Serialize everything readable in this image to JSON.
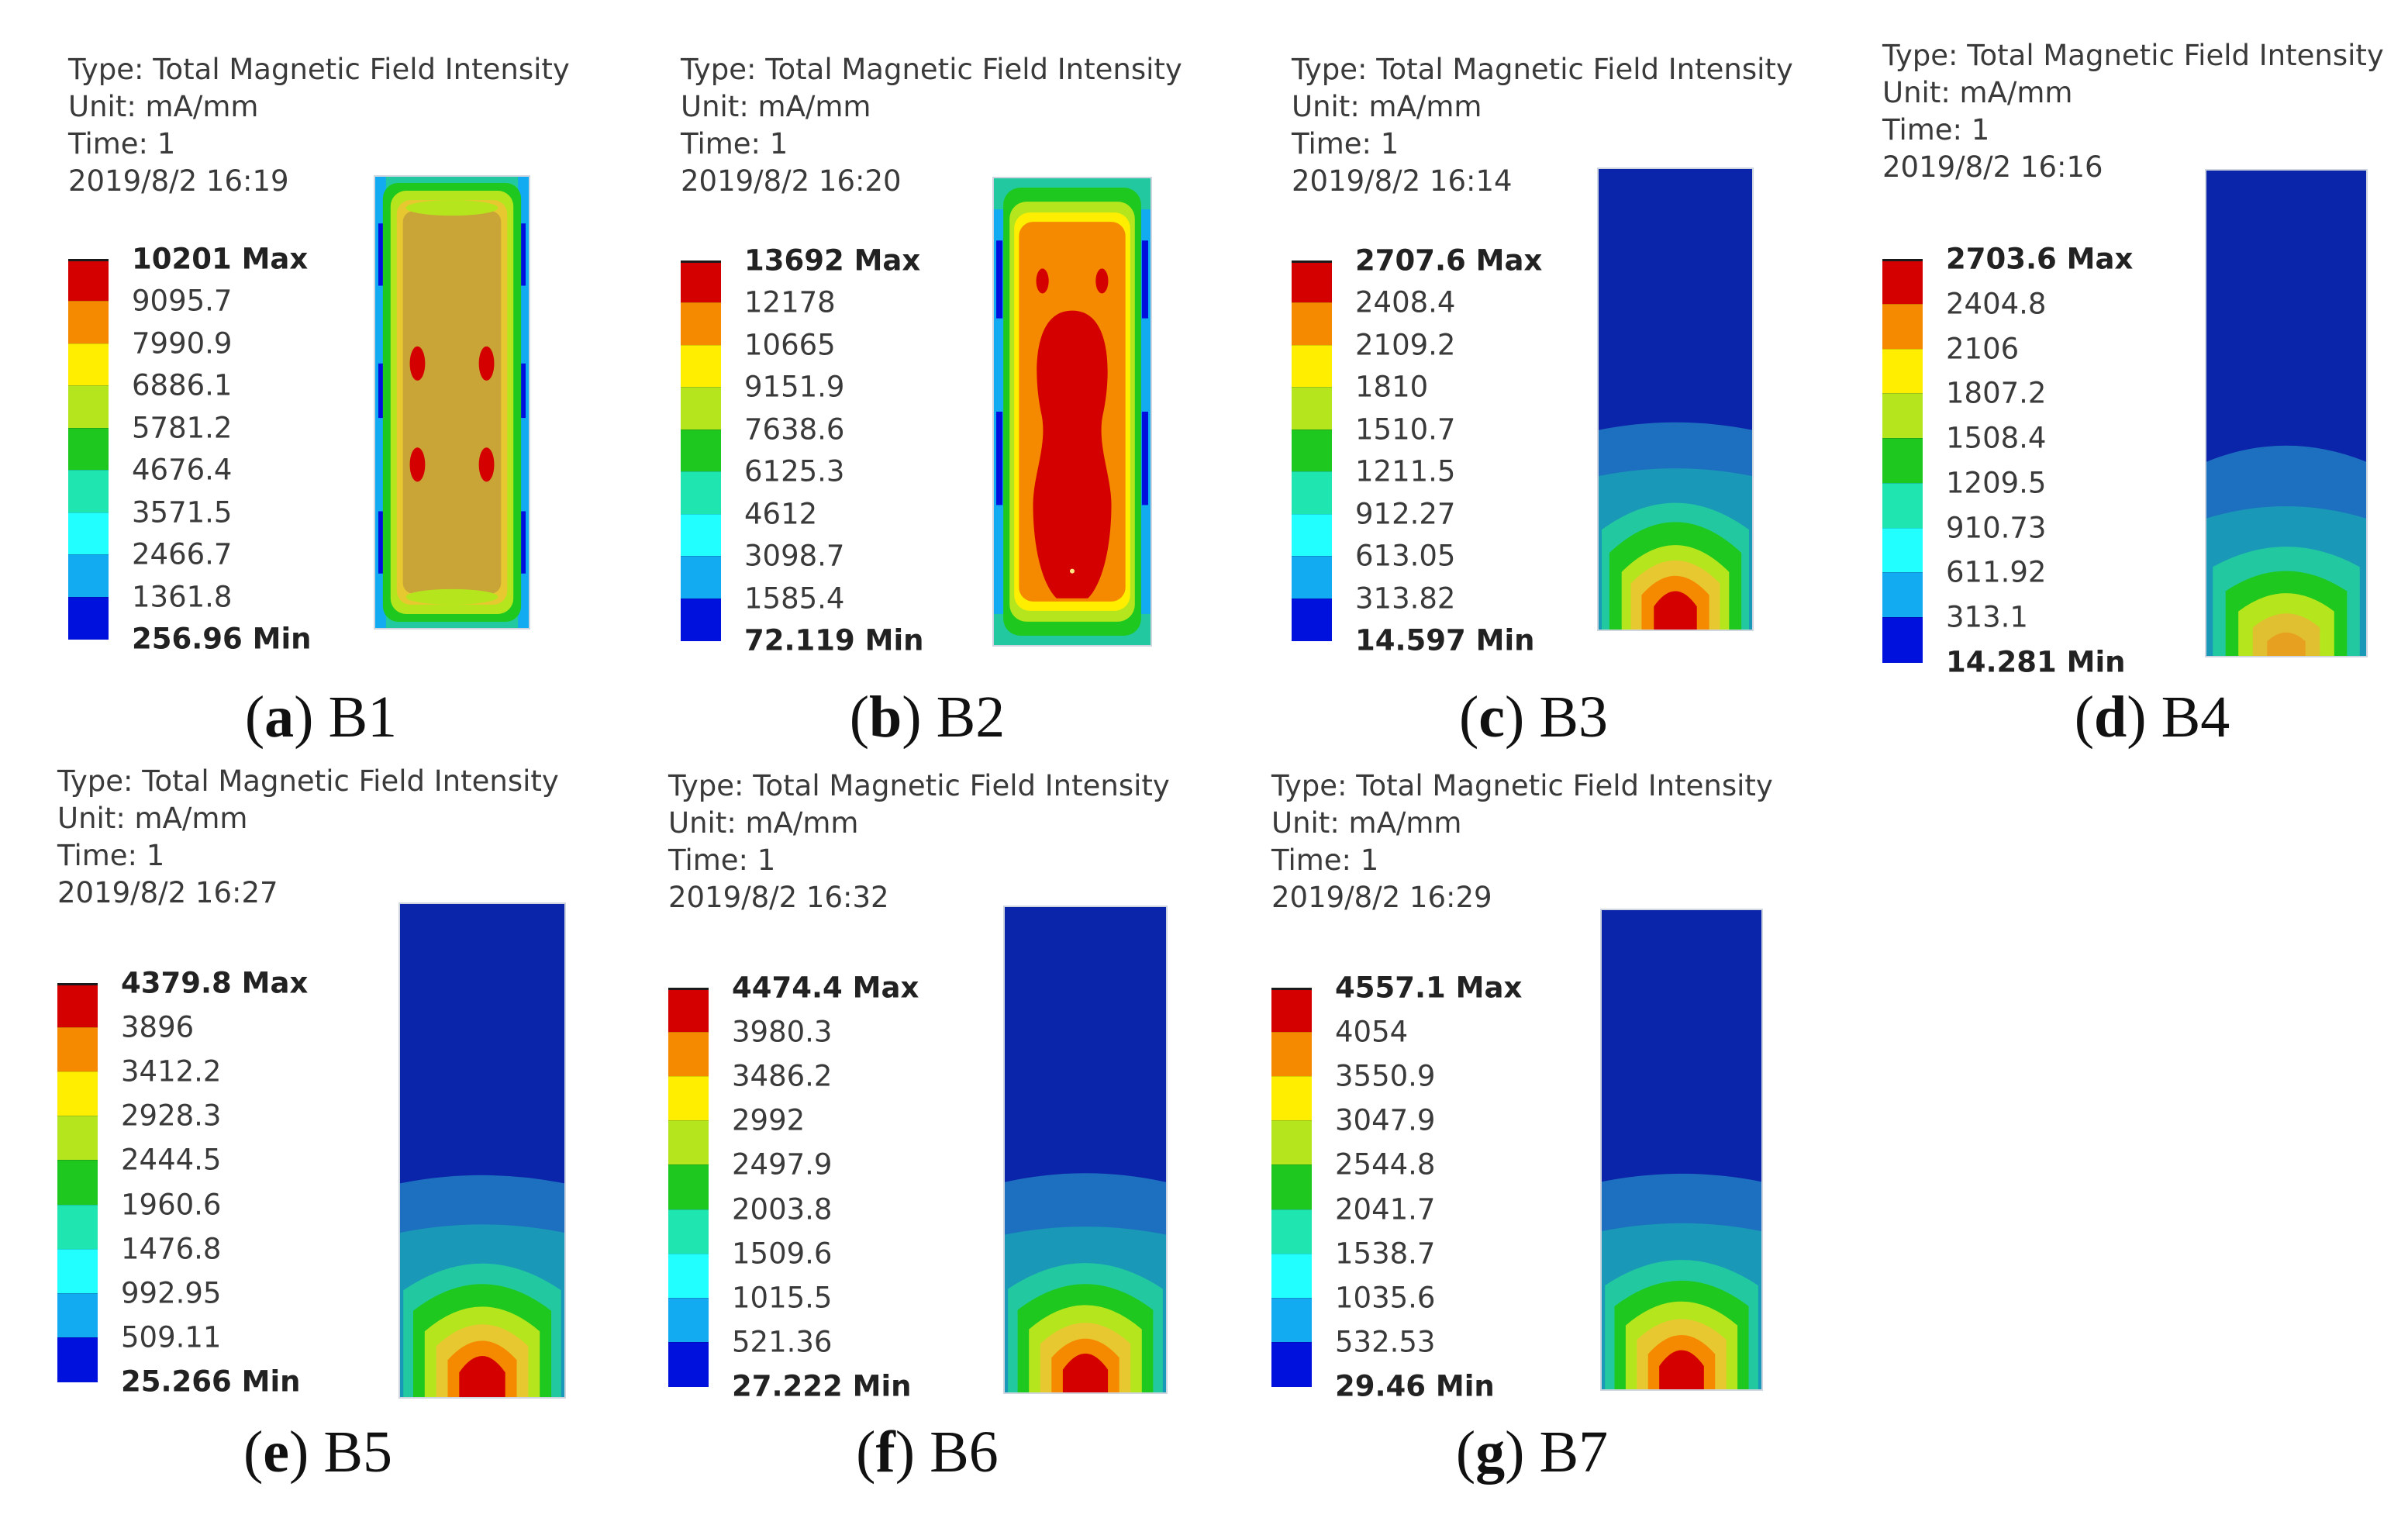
{
  "header": {
    "type": "Type: Total Magnetic Field Intensity",
    "unit": "Unit: mA/mm",
    "time": "Time: 1"
  },
  "legend_colors": [
    "#d40000",
    "#f58a00",
    "#ffee00",
    "#b5e61d",
    "#1fc81f",
    "#1fe6b0",
    "#22ffff",
    "#12aaf0",
    "#0011dd"
  ],
  "panels": [
    {
      "id": "b1",
      "date": "2019/8/2 16:19",
      "legend": [
        "10201 Max",
        "9095.7",
        "7990.9",
        "6886.1",
        "5781.2",
        "4676.4",
        "3571.5",
        "2466.7",
        "1361.8",
        "256.96 Min"
      ],
      "caption": {
        "letter": "a",
        "name": "B1"
      }
    },
    {
      "id": "b2",
      "date": "2019/8/2 16:20",
      "legend": [
        "13692 Max",
        "12178",
        "10665",
        "9151.9",
        "7638.6",
        "6125.3",
        "4612",
        "3098.7",
        "1585.4",
        "72.119 Min"
      ],
      "caption": {
        "letter": "b",
        "name": "B2"
      }
    },
    {
      "id": "b3",
      "date": "2019/8/2 16:14",
      "legend": [
        "2707.6 Max",
        "2408.4",
        "2109.2",
        "1810",
        "1510.7",
        "1211.5",
        "912.27",
        "613.05",
        "313.82",
        "14.597 Min"
      ],
      "caption": {
        "letter": "c",
        "name": "B3"
      }
    },
    {
      "id": "b4",
      "date": "2019/8/2 16:16",
      "legend": [
        "2703.6 Max",
        "2404.8",
        "2106",
        "1807.2",
        "1508.4",
        "1209.5",
        "910.73",
        "611.92",
        "313.1",
        "14.281 Min"
      ],
      "caption": {
        "letter": "d",
        "name": "B4"
      }
    },
    {
      "id": "b5",
      "date": "2019/8/2 16:27",
      "legend": [
        "4379.8 Max",
        "3896",
        "3412.2",
        "2928.3",
        "2444.5",
        "1960.6",
        "1476.8",
        "992.95",
        "509.11",
        "25.266 Min"
      ],
      "caption": {
        "letter": "e",
        "name": "B5"
      }
    },
    {
      "id": "b6",
      "date": "2019/8/2 16:32",
      "legend": [
        "4474.4 Max",
        "3980.3",
        "3486.2",
        "2992",
        "2497.9",
        "2003.8",
        "1509.6",
        "1015.5",
        "521.36",
        "27.222 Min"
      ],
      "caption": {
        "letter": "f",
        "name": "B6"
      }
    },
    {
      "id": "b7",
      "date": "2019/8/2 16:29",
      "legend": [
        "4557.1 Max",
        "4054",
        "3550.9",
        "3047.9",
        "2544.8",
        "2041.7",
        "1538.7",
        "1035.6",
        "532.53",
        "29.46 Min"
      ],
      "caption": {
        "letter": "g",
        "name": "B7"
      }
    }
  ]
}
